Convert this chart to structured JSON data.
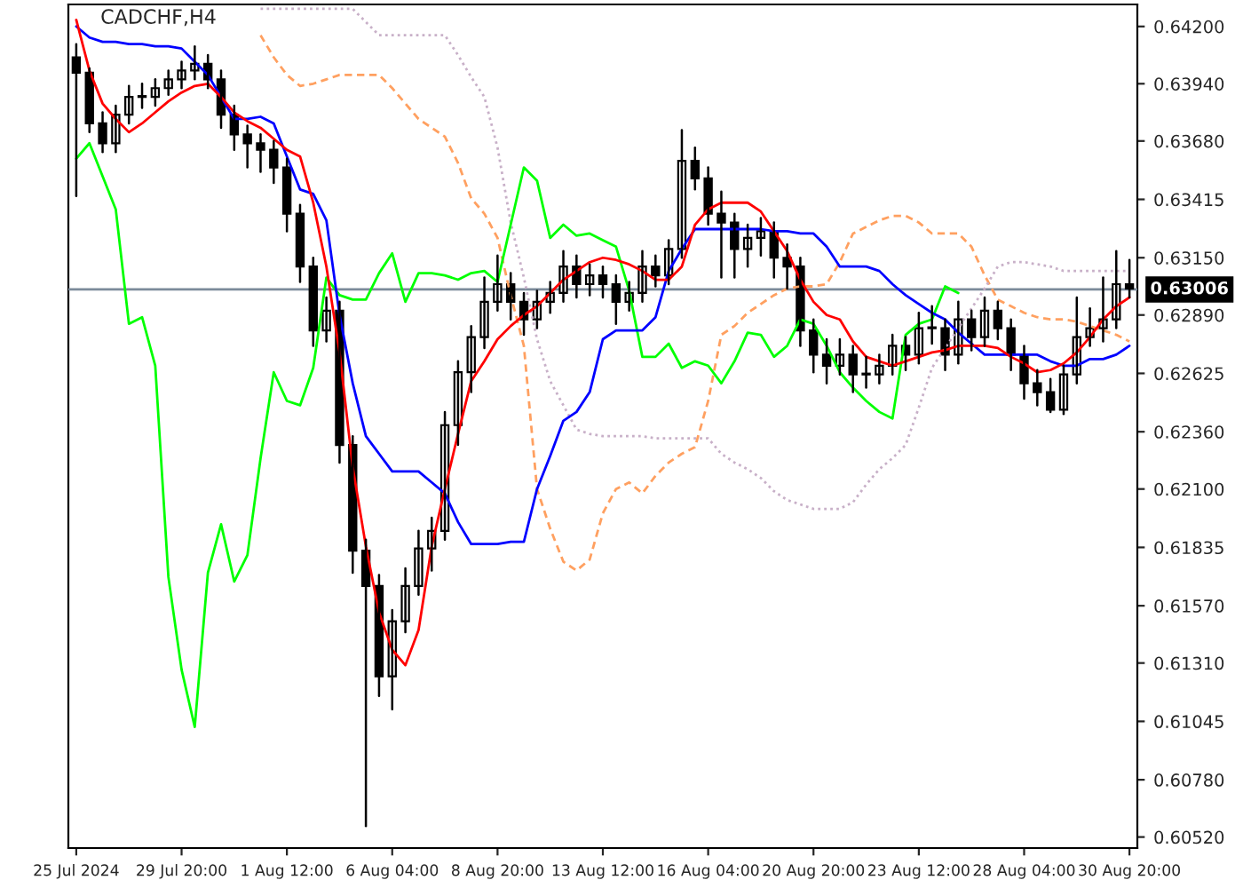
{
  "chart_data": {
    "type": "candlestick",
    "title": "CADCHF,H4",
    "color": "#000000",
    "categories": [
      "25 Jul 2024",
      null,
      null,
      null,
      null,
      null,
      null,
      null,
      "29 Jul 20:00",
      null,
      null,
      null,
      null,
      null,
      null,
      null,
      "1 Aug 12:00",
      null,
      null,
      null,
      null,
      null,
      null,
      null,
      "6 Aug 04:00",
      null,
      null,
      null,
      null,
      null,
      null,
      null,
      "8 Aug 20:00",
      null,
      null,
      null,
      null,
      null,
      null,
      null,
      "13 Aug 12:00",
      null,
      null,
      null,
      null,
      null,
      null,
      null,
      "16 Aug 04:00",
      null,
      null,
      null,
      null,
      null,
      null,
      null,
      "20 Aug 20:00",
      null,
      null,
      null,
      null,
      null,
      null,
      null,
      "23 Aug 12:00",
      null,
      null,
      null,
      null,
      null,
      null,
      null,
      "28 Aug 04:00",
      null,
      null,
      null,
      null,
      null,
      null,
      null,
      "30 Aug 20:00"
    ],
    "ohlc": [
      [
        0.6406,
        0.6412,
        0.6343,
        0.6399
      ],
      [
        0.6399,
        0.6401,
        0.6372,
        0.6376
      ],
      [
        0.6376,
        0.6381,
        0.6363,
        0.6367
      ],
      [
        0.6367,
        0.6384,
        0.6363,
        0.638
      ],
      [
        0.638,
        0.6393,
        0.6376,
        0.6388
      ],
      [
        0.6388,
        0.6394,
        0.6383,
        0.6388
      ],
      [
        0.6388,
        0.6396,
        0.6384,
        0.6392
      ],
      [
        0.6392,
        0.64,
        0.6389,
        0.6396
      ],
      [
        0.6396,
        0.6404,
        0.6392,
        0.64
      ],
      [
        0.64,
        0.6411,
        0.6396,
        0.6403
      ],
      [
        0.6403,
        0.6407,
        0.6392,
        0.6396
      ],
      [
        0.6396,
        0.64,
        0.6374,
        0.638
      ],
      [
        0.638,
        0.6384,
        0.6364,
        0.6371
      ],
      [
        0.6371,
        0.6375,
        0.6356,
        0.6367
      ],
      [
        0.6367,
        0.6371,
        0.6354,
        0.6364
      ],
      [
        0.6364,
        0.6368,
        0.6349,
        0.6356
      ],
      [
        0.6356,
        0.636,
        0.6327,
        0.6335
      ],
      [
        0.6335,
        0.6339,
        0.6304,
        0.6311
      ],
      [
        0.6311,
        0.6315,
        0.6275,
        0.6282
      ],
      [
        0.6282,
        0.6297,
        0.6277,
        0.6291
      ],
      [
        0.6291,
        0.6295,
        0.6222,
        0.623
      ],
      [
        0.623,
        0.6234,
        0.6172,
        0.6182
      ],
      [
        0.6182,
        0.6187,
        0.6057,
        0.6166
      ],
      [
        0.6166,
        0.6171,
        0.6116,
        0.6125
      ],
      [
        0.6125,
        0.6155,
        0.611,
        0.615
      ],
      [
        0.615,
        0.6174,
        0.6145,
        0.6166
      ],
      [
        0.6166,
        0.6191,
        0.6162,
        0.6183
      ],
      [
        0.6183,
        0.6197,
        0.6173,
        0.6191
      ],
      [
        0.6191,
        0.6245,
        0.6187,
        0.6239
      ],
      [
        0.6239,
        0.6268,
        0.623,
        0.6263
      ],
      [
        0.6263,
        0.6284,
        0.6254,
        0.6279
      ],
      [
        0.6279,
        0.6306,
        0.6274,
        0.6295
      ],
      [
        0.6295,
        0.6316,
        0.6291,
        0.6303
      ],
      [
        0.6303,
        0.6308,
        0.6287,
        0.6295
      ],
      [
        0.6295,
        0.6299,
        0.628,
        0.6287
      ],
      [
        0.6287,
        0.63,
        0.6283,
        0.6295
      ],
      [
        0.6295,
        0.6304,
        0.629,
        0.6299
      ],
      [
        0.6299,
        0.6318,
        0.6295,
        0.6311
      ],
      [
        0.6311,
        0.6316,
        0.6297,
        0.6303
      ],
      [
        0.6303,
        0.6312,
        0.6298,
        0.6307
      ],
      [
        0.6307,
        0.6311,
        0.6297,
        0.6303
      ],
      [
        0.6303,
        0.6307,
        0.6285,
        0.6295
      ],
      [
        0.6295,
        0.6304,
        0.6291,
        0.6299
      ],
      [
        0.6299,
        0.6318,
        0.6295,
        0.6311
      ],
      [
        0.6311,
        0.6316,
        0.6302,
        0.6307
      ],
      [
        0.6307,
        0.6323,
        0.6303,
        0.6319
      ],
      [
        0.6319,
        0.6373,
        0.6315,
        0.6359
      ],
      [
        0.6359,
        0.6365,
        0.6346,
        0.6351
      ],
      [
        0.6351,
        0.6356,
        0.633,
        0.6335
      ],
      [
        0.6335,
        0.6345,
        0.6306,
        0.6331
      ],
      [
        0.6331,
        0.6335,
        0.6306,
        0.6319
      ],
      [
        0.6319,
        0.633,
        0.6311,
        0.6324
      ],
      [
        0.6324,
        0.6333,
        0.6316,
        0.6327
      ],
      [
        0.6327,
        0.6331,
        0.6306,
        0.6315
      ],
      [
        0.6315,
        0.6321,
        0.6301,
        0.6311
      ],
      [
        0.6311,
        0.6315,
        0.6275,
        0.6282
      ],
      [
        0.6282,
        0.6287,
        0.6263,
        0.6271
      ],
      [
        0.6271,
        0.6278,
        0.6258,
        0.6266
      ],
      [
        0.6266,
        0.6278,
        0.6262,
        0.6271
      ],
      [
        0.6271,
        0.6275,
        0.6254,
        0.6262
      ],
      [
        0.6262,
        0.627,
        0.6256,
        0.6262
      ],
      [
        0.6262,
        0.6271,
        0.6258,
        0.6266
      ],
      [
        0.6266,
        0.628,
        0.6262,
        0.6275
      ],
      [
        0.6275,
        0.6279,
        0.6264,
        0.6271
      ],
      [
        0.6271,
        0.629,
        0.6267,
        0.6283
      ],
      [
        0.6283,
        0.6293,
        0.6276,
        0.6283
      ],
      [
        0.6283,
        0.6287,
        0.6264,
        0.6271
      ],
      [
        0.6271,
        0.6295,
        0.6267,
        0.6287
      ],
      [
        0.6287,
        0.6291,
        0.6273,
        0.6279
      ],
      [
        0.6279,
        0.6297,
        0.6275,
        0.6291
      ],
      [
        0.6291,
        0.6295,
        0.6278,
        0.6283
      ],
      [
        0.6283,
        0.6287,
        0.6264,
        0.6271
      ],
      [
        0.6271,
        0.6275,
        0.6251,
        0.6258
      ],
      [
        0.6258,
        0.6264,
        0.6248,
        0.6254
      ],
      [
        0.6254,
        0.626,
        0.6245,
        0.6246
      ],
      [
        0.6246,
        0.6266,
        0.6244,
        0.6262
      ],
      [
        0.6262,
        0.6297,
        0.6258,
        0.6279
      ],
      [
        0.6279,
        0.6292,
        0.6275,
        0.6283
      ],
      [
        0.6283,
        0.6306,
        0.6277,
        0.6287
      ],
      [
        0.6287,
        0.6318,
        0.6283,
        0.6303
      ],
      [
        0.6303,
        0.6314,
        0.6297,
        0.6301
      ]
    ],
    "series": [
      {
        "type": "line",
        "color": "#ffa060",
        "line_style": "dashed",
        "values": [
          null,
          null,
          null,
          null,
          null,
          null,
          null,
          null,
          null,
          null,
          null,
          null,
          null,
          null,
          0.6416,
          0.6406,
          0.6398,
          0.6393,
          0.6394,
          0.6396,
          0.6398,
          0.6398,
          0.6398,
          0.6398,
          0.6392,
          0.6385,
          0.6378,
          0.6374,
          0.637,
          0.6358,
          0.6342,
          0.6335,
          0.6324,
          0.6298,
          0.6275,
          0.621,
          0.6192,
          0.6177,
          0.6173,
          0.6178,
          0.6199,
          0.621,
          0.6213,
          0.6208,
          0.6216,
          0.6222,
          0.6226,
          0.6229,
          0.625,
          0.628,
          0.6284,
          0.629,
          0.6294,
          0.6298,
          0.6301,
          0.6302,
          0.6302,
          0.6303,
          0.6313,
          0.6326,
          0.6329,
          0.6332,
          0.6334,
          0.6334,
          0.6331,
          0.6326,
          0.6326,
          0.6326,
          0.632,
          0.6307,
          0.6296,
          0.6293,
          0.629,
          0.6288,
          0.6287,
          0.6287,
          0.6286,
          0.6284,
          0.6282,
          0.628,
          0.6277
        ]
      },
      {
        "type": "line",
        "color": "#c8b0c8",
        "line_style": "dotted",
        "values": [
          null,
          null,
          null,
          null,
          null,
          null,
          null,
          null,
          null,
          null,
          null,
          null,
          null,
          null,
          0.6428,
          0.6428,
          0.6428,
          0.6428,
          0.6428,
          0.6428,
          0.6428,
          0.6428,
          0.6422,
          0.6416,
          0.6416,
          0.6416,
          0.6416,
          0.6416,
          0.6416,
          0.6407,
          0.6397,
          0.6388,
          0.6365,
          0.6331,
          0.6306,
          0.6278,
          0.6259,
          0.6248,
          0.6237,
          0.6235,
          0.6234,
          0.6234,
          0.6234,
          0.6234,
          0.6233,
          0.6233,
          0.6233,
          0.6233,
          0.6233,
          0.6226,
          0.6222,
          0.6219,
          0.6215,
          0.6209,
          0.6205,
          0.6203,
          0.6201,
          0.6201,
          0.6201,
          0.6204,
          0.6212,
          0.6219,
          0.6224,
          0.623,
          0.6247,
          0.6265,
          0.6274,
          0.6283,
          0.6292,
          0.6301,
          0.6311,
          0.6313,
          0.6313,
          0.6312,
          0.6311,
          0.6309,
          0.6309,
          0.6309,
          0.6309,
          0.6309,
          0.6309
        ]
      },
      {
        "type": "line",
        "color": "#00ff00",
        "line_style": "solid",
        "values": [
          0.636,
          0.6367,
          0.6352,
          0.6337,
          0.6285,
          0.6288,
          0.6266,
          0.617,
          0.6128,
          0.6102,
          0.6172,
          0.6194,
          0.6168,
          0.618,
          0.6224,
          0.6263,
          0.625,
          0.6248,
          0.6265,
          0.6306,
          0.6298,
          0.6296,
          0.6296,
          0.6308,
          0.6317,
          0.6295,
          0.6308,
          0.6308,
          0.6307,
          0.6305,
          0.6308,
          0.6309,
          0.6304,
          0.633,
          0.6356,
          0.635,
          0.6324,
          0.633,
          0.6325,
          0.6326,
          0.6323,
          0.632,
          0.63,
          0.627,
          0.627,
          0.6276,
          0.6265,
          0.6268,
          0.6266,
          0.6258,
          0.6268,
          0.6281,
          0.628,
          0.627,
          0.6275,
          0.6287,
          0.6285,
          0.6275,
          0.6263,
          0.6256,
          0.625,
          0.6245,
          0.6242,
          0.628,
          0.6285,
          0.6287,
          0.6302,
          0.6299,
          null,
          null,
          null,
          null,
          null,
          null,
          null,
          null,
          null,
          null,
          null,
          null,
          null
        ]
      },
      {
        "type": "line",
        "color": "#0000ff",
        "line_style": "solid",
        "values": [
          0.642,
          0.6415,
          0.6413,
          0.6413,
          0.6412,
          0.6412,
          0.6411,
          0.6411,
          0.641,
          0.6404,
          0.6398,
          0.6388,
          0.6378,
          0.6378,
          0.6379,
          0.6376,
          0.6361,
          0.6346,
          0.6344,
          0.6332,
          0.6289,
          0.6258,
          0.6234,
          0.6226,
          0.6218,
          0.6218,
          0.6218,
          0.6213,
          0.6208,
          0.6195,
          0.6185,
          0.6185,
          0.6185,
          0.6186,
          0.6186,
          0.621,
          0.6225,
          0.6241,
          0.6245,
          0.6254,
          0.6278,
          0.6282,
          0.6282,
          0.6282,
          0.6288,
          0.6309,
          0.6319,
          0.6328,
          0.6328,
          0.6328,
          0.6328,
          0.6328,
          0.6328,
          0.6327,
          0.6327,
          0.6326,
          0.6326,
          0.632,
          0.6311,
          0.6311,
          0.6311,
          0.6309,
          0.6303,
          0.6298,
          0.6294,
          0.629,
          0.6287,
          0.6281,
          0.6276,
          0.6271,
          0.6271,
          0.6271,
          0.6271,
          0.6271,
          0.6268,
          0.6266,
          0.6266,
          0.6269,
          0.6269,
          0.6271,
          0.6275
        ]
      },
      {
        "type": "line",
        "color": "#ff0000",
        "line_style": "solid",
        "values": [
          0.6423,
          0.64,
          0.6385,
          0.6378,
          0.6372,
          0.6376,
          0.6381,
          0.6386,
          0.639,
          0.6393,
          0.6394,
          0.6388,
          0.6381,
          0.6377,
          0.6374,
          0.6369,
          0.6364,
          0.6361,
          0.634,
          0.6311,
          0.6272,
          0.622,
          0.6184,
          0.6154,
          0.6137,
          0.613,
          0.6146,
          0.6184,
          0.621,
          0.6235,
          0.6259,
          0.6268,
          0.6278,
          0.6284,
          0.6289,
          0.6293,
          0.6299,
          0.6305,
          0.6309,
          0.6313,
          0.6315,
          0.6314,
          0.6312,
          0.6309,
          0.6305,
          0.6305,
          0.6311,
          0.633,
          0.6337,
          0.634,
          0.634,
          0.634,
          0.6336,
          0.6327,
          0.6318,
          0.6305,
          0.6295,
          0.6289,
          0.6287,
          0.6277,
          0.627,
          0.6268,
          0.6266,
          0.6268,
          0.627,
          0.6272,
          0.6273,
          0.6275,
          0.6275,
          0.6275,
          0.6274,
          0.627,
          0.6267,
          0.6263,
          0.6264,
          0.6267,
          0.6272,
          0.6279,
          0.6287,
          0.6293,
          0.6297
        ]
      }
    ],
    "ylim": [
      0.6047,
      0.643
    ],
    "yticks": [
      {
        "value": 0.642,
        "label": "0.64200"
      },
      {
        "value": 0.6394,
        "label": "0.63940"
      },
      {
        "value": 0.6368,
        "label": "0.63680"
      },
      {
        "value": 0.63415,
        "label": "0.63415"
      },
      {
        "value": 0.6315,
        "label": "0.63150"
      },
      {
        "value": 0.6289,
        "label": "0.62890"
      },
      {
        "value": 0.62625,
        "label": "0.62625"
      },
      {
        "value": 0.6236,
        "label": "0.62360"
      },
      {
        "value": 0.621,
        "label": "0.62100"
      },
      {
        "value": 0.61835,
        "label": "0.61835"
      },
      {
        "value": 0.6157,
        "label": "0.61570"
      },
      {
        "value": 0.6131,
        "label": "0.61310"
      },
      {
        "value": 0.61045,
        "label": "0.61045"
      },
      {
        "value": 0.6078,
        "label": "0.60780"
      },
      {
        "value": 0.6052,
        "label": "0.60520"
      }
    ],
    "ref_lines": [
      {
        "axis": "y",
        "value": 0.63006,
        "label": "0.63006",
        "color": "#7b8a9a"
      }
    ],
    "grid": false,
    "legend": false
  }
}
